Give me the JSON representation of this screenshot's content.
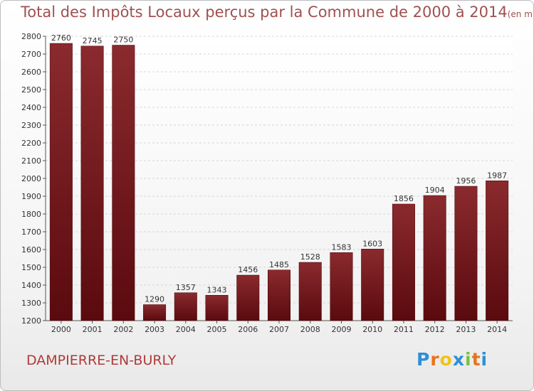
{
  "chart_data": {
    "type": "bar",
    "title": "Total des Impôts Locaux perçus par la Commune de 2000 à 2014",
    "unit": "(en milliers d'€)",
    "categories": [
      "2000",
      "2001",
      "2002",
      "2003",
      "2004",
      "2005",
      "2006",
      "2007",
      "2008",
      "2009",
      "2010",
      "2011",
      "2012",
      "2013",
      "2014"
    ],
    "values": [
      2760,
      2745,
      2750,
      1290,
      1357,
      1343,
      1456,
      1485,
      1528,
      1583,
      1603,
      1856,
      1904,
      1956,
      1987
    ],
    "ylim": [
      1200,
      2800
    ],
    "yticks": [
      1200,
      1300,
      1400,
      1500,
      1600,
      1700,
      1800,
      1900,
      2000,
      2100,
      2200,
      2300,
      2400,
      2500,
      2600,
      2700,
      2800
    ],
    "xlabel": "",
    "ylabel": "",
    "grid": true,
    "bar_color": "#7a1a1e"
  },
  "commune": "DAMPIERRE-EN-BURLY",
  "logo": {
    "letters": [
      "P",
      "r",
      "o",
      "x",
      "i",
      "t",
      "i"
    ],
    "colors": [
      "#2e8fd6",
      "#e8741c",
      "#f0c419",
      "#2e8fd6",
      "#7ac143",
      "#e8741c",
      "#2e8fd6"
    ]
  }
}
